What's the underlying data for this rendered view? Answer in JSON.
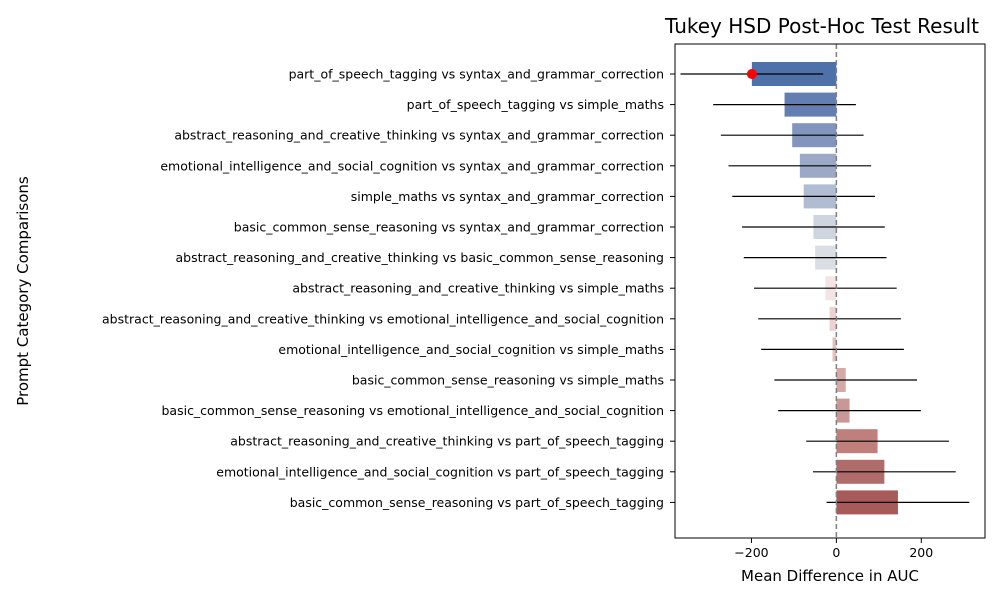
{
  "chart_data": {
    "type": "bar",
    "orientation": "horizontal",
    "title": "Tukey HSD Post-Hoc Test Result",
    "xlabel": "Mean Difference in AUC",
    "ylabel": "Prompt Category Comparisons",
    "xlim": [
      -380,
      350
    ],
    "xticks": [
      -200,
      0,
      200
    ],
    "xtick_labels": [
      "−200",
      "0",
      "200"
    ],
    "reference_line_x": 0,
    "grid": false,
    "categories": [
      "part_of_speech_tagging vs syntax_and_grammar_correction",
      "part_of_speech_tagging vs simple_maths",
      "abstract_reasoning_and_creative_thinking vs syntax_and_grammar_correction",
      "emotional_intelligence_and_social_cognition vs syntax_and_grammar_correction",
      "simple_maths vs syntax_and_grammar_correction",
      "basic_common_sense_reasoning vs syntax_and_grammar_correction",
      "abstract_reasoning_and_creative_thinking vs basic_common_sense_reasoning",
      "abstract_reasoning_and_creative_thinking vs simple_maths",
      "abstract_reasoning_and_creative_thinking vs emotional_intelligence_and_social_cognition",
      "emotional_intelligence_and_social_cognition vs simple_maths",
      "basic_common_sense_reasoning vs simple_maths",
      "basic_common_sense_reasoning vs emotional_intelligence_and_social_cognition",
      "abstract_reasoning_and_creative_thinking vs part_of_speech_tagging",
      "emotional_intelligence_and_social_cognition vs part_of_speech_tagging",
      "basic_common_sense_reasoning vs part_of_speech_tagging"
    ],
    "values": [
      -199,
      -122,
      -104,
      -86,
      -77,
      -54,
      -50,
      -26,
      -16,
      -9,
      22,
      31,
      97,
      113,
      145
    ],
    "ci_lower": [
      -367,
      -290,
      -272,
      -254,
      -245,
      -222,
      -218,
      -194,
      -184,
      -177,
      -146,
      -137,
      -71,
      -55,
      -23
    ],
    "ci_upper": [
      -31,
      46,
      64,
      82,
      91,
      114,
      118,
      142,
      152,
      159,
      190,
      199,
      265,
      281,
      313
    ],
    "colors": [
      "#4e71aa",
      "#637fb1",
      "#8195bd",
      "#9ba9c7",
      "#b0bcd1",
      "#cfd5df",
      "#dcdee5",
      "#f4e5e5",
      "#edd2d2",
      "#e1c0bf",
      "#d4a9a8",
      "#c99796",
      "#be7f7d",
      "#b06c6a",
      "#a85a58"
    ],
    "highlight": {
      "category": "part_of_speech_tagging vs syntax_and_grammar_correction",
      "value": -199,
      "color": "#ff0000"
    }
  }
}
